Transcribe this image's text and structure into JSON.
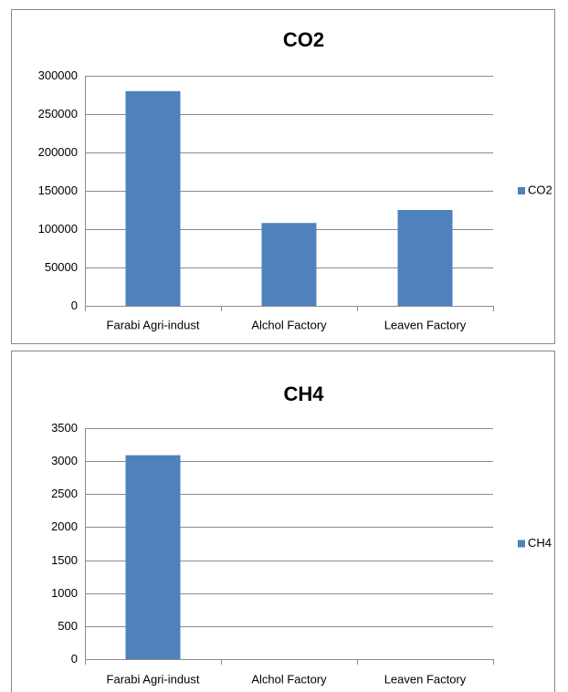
{
  "chart_data": [
    {
      "type": "bar",
      "title": "CO2",
      "categories": [
        "Farabi Agri-indust",
        "Alchol Factory",
        "Leaven Factory"
      ],
      "series": [
        {
          "name": "CO2",
          "color": "#4f81bd",
          "values": [
            280000,
            108000,
            125000
          ]
        }
      ],
      "ylim": [
        0,
        300000
      ],
      "yticks": [
        0,
        50000,
        100000,
        150000,
        200000,
        250000,
        300000
      ],
      "grid": true,
      "legend": "right"
    },
    {
      "type": "bar",
      "title": "CH4",
      "categories": [
        "Farabi Agri-indust",
        "Alchol Factory",
        "Leaven Factory"
      ],
      "series": [
        {
          "name": "CH4",
          "color": "#4f81bd",
          "values": [
            3090,
            0,
            0
          ]
        }
      ],
      "ylim": [
        0,
        3500
      ],
      "yticks": [
        0,
        500,
        1000,
        1500,
        2000,
        2500,
        3000,
        3500
      ],
      "grid": true,
      "legend": "right"
    }
  ]
}
